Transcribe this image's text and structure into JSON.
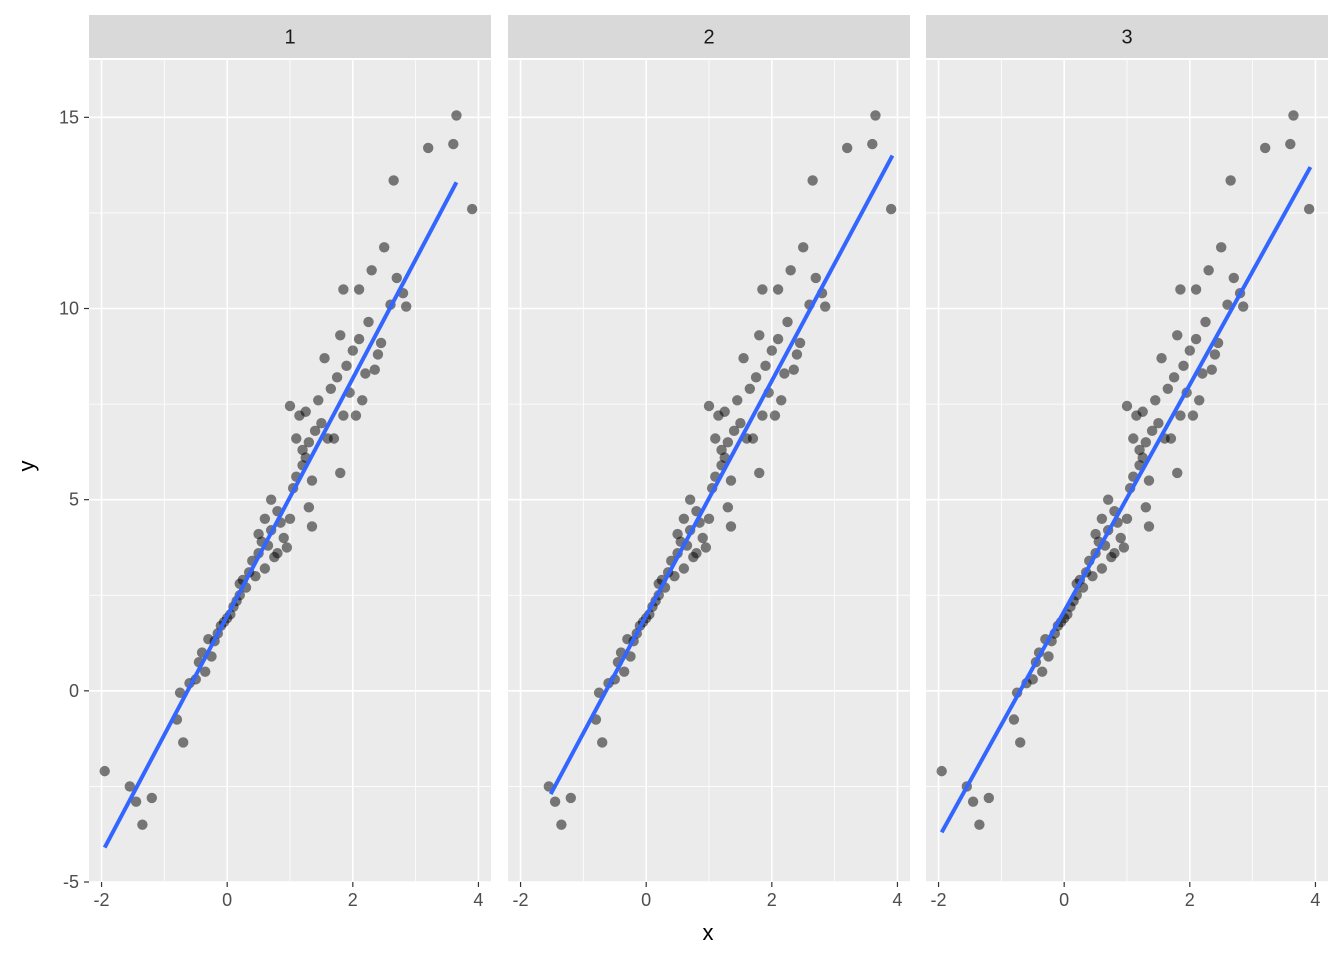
{
  "chart_data": {
    "type": "scatter",
    "facets": [
      "1",
      "2",
      "3"
    ],
    "xlabel": "x",
    "ylabel": "y",
    "xlim": [
      -2.2,
      4.2
    ],
    "ylim": [
      -5,
      16.5
    ],
    "x_ticks": [
      -2,
      0,
      2,
      4
    ],
    "y_ticks": [
      -5,
      0,
      5,
      10,
      15
    ],
    "x_tick_labels": [
      "-2",
      "0",
      "2",
      "4"
    ],
    "y_tick_labels": [
      "-5",
      "0",
      "5",
      "10",
      "15"
    ],
    "grid": true,
    "colors": {
      "panel_bg": "#ebebeb",
      "strip_bg": "#d9d9d9",
      "grid": "#ffffff",
      "point": "#000000",
      "fit_line": "#3366ff"
    },
    "fit_lines": [
      {
        "facet": "1",
        "x": [
          -1.95,
          3.65
        ],
        "y": [
          -4.1,
          13.3
        ]
      },
      {
        "facet": "2",
        "x": [
          -1.52,
          3.92
        ],
        "y": [
          -2.7,
          14.0
        ]
      },
      {
        "facet": "3",
        "x": [
          -1.95,
          3.92
        ],
        "y": [
          -3.7,
          13.7
        ]
      }
    ],
    "base_points": [
      [
        -1.95,
        -2.1
      ],
      [
        -1.55,
        -2.5
      ],
      [
        -1.45,
        -2.9
      ],
      [
        -1.35,
        -3.5
      ],
      [
        -1.2,
        -2.8
      ],
      [
        -0.8,
        -0.75
      ],
      [
        -0.75,
        -0.05
      ],
      [
        -0.7,
        -1.35
      ],
      [
        -0.6,
        0.2
      ],
      [
        -0.5,
        0.3
      ],
      [
        -0.45,
        0.75
      ],
      [
        -0.4,
        1.0
      ],
      [
        -0.35,
        0.5
      ],
      [
        -0.3,
        1.35
      ],
      [
        -0.25,
        0.9
      ],
      [
        -0.2,
        1.3
      ],
      [
        -0.15,
        1.5
      ],
      [
        -0.1,
        1.7
      ],
      [
        -0.05,
        1.8
      ],
      [
        0.0,
        1.9
      ],
      [
        0.05,
        2.0
      ],
      [
        0.1,
        2.2
      ],
      [
        0.15,
        2.35
      ],
      [
        0.2,
        2.5
      ],
      [
        0.2,
        2.8
      ],
      [
        0.25,
        2.9
      ],
      [
        0.3,
        2.7
      ],
      [
        0.35,
        3.1
      ],
      [
        0.4,
        3.4
      ],
      [
        0.45,
        3.0
      ],
      [
        0.5,
        3.6
      ],
      [
        0.5,
        4.1
      ],
      [
        0.55,
        3.9
      ],
      [
        0.6,
        4.5
      ],
      [
        0.6,
        3.2
      ],
      [
        0.65,
        3.8
      ],
      [
        0.7,
        4.2
      ],
      [
        0.7,
        5.0
      ],
      [
        0.75,
        3.5
      ],
      [
        0.8,
        4.7
      ],
      [
        0.8,
        3.6
      ],
      [
        0.85,
        4.4
      ],
      [
        0.9,
        4.0
      ],
      [
        0.95,
        3.75
      ],
      [
        1.0,
        4.5
      ],
      [
        1.0,
        7.45
      ],
      [
        1.05,
        5.3
      ],
      [
        1.1,
        6.6
      ],
      [
        1.1,
        5.6
      ],
      [
        1.15,
        7.2
      ],
      [
        1.2,
        5.9
      ],
      [
        1.2,
        6.3
      ],
      [
        1.25,
        7.3
      ],
      [
        1.25,
        6.1
      ],
      [
        1.3,
        6.5
      ],
      [
        1.3,
        4.8
      ],
      [
        1.35,
        5.5
      ],
      [
        1.35,
        4.3
      ],
      [
        1.4,
        6.8
      ],
      [
        1.45,
        7.6
      ],
      [
        1.5,
        7.0
      ],
      [
        1.55,
        8.7
      ],
      [
        1.6,
        6.6
      ],
      [
        1.65,
        7.9
      ],
      [
        1.7,
        6.6
      ],
      [
        1.75,
        8.2
      ],
      [
        1.8,
        9.3
      ],
      [
        1.8,
        5.7
      ],
      [
        1.85,
        10.5
      ],
      [
        1.85,
        7.2
      ],
      [
        1.9,
        8.5
      ],
      [
        1.95,
        7.8
      ],
      [
        2.0,
        8.9
      ],
      [
        2.05,
        7.2
      ],
      [
        2.1,
        10.5
      ],
      [
        2.1,
        9.2
      ],
      [
        2.15,
        7.6
      ],
      [
        2.2,
        8.3
      ],
      [
        2.25,
        9.65
      ],
      [
        2.3,
        11.0
      ],
      [
        2.35,
        8.4
      ],
      [
        2.4,
        8.8
      ],
      [
        2.45,
        9.1
      ],
      [
        2.5,
        11.6
      ],
      [
        2.6,
        10.1
      ],
      [
        2.65,
        13.35
      ],
      [
        2.7,
        10.8
      ],
      [
        2.8,
        10.4
      ],
      [
        2.85,
        10.05
      ],
      [
        3.2,
        14.2
      ],
      [
        3.65,
        15.05
      ],
      [
        3.6,
        14.3
      ],
      [
        3.9,
        12.6
      ]
    ]
  }
}
